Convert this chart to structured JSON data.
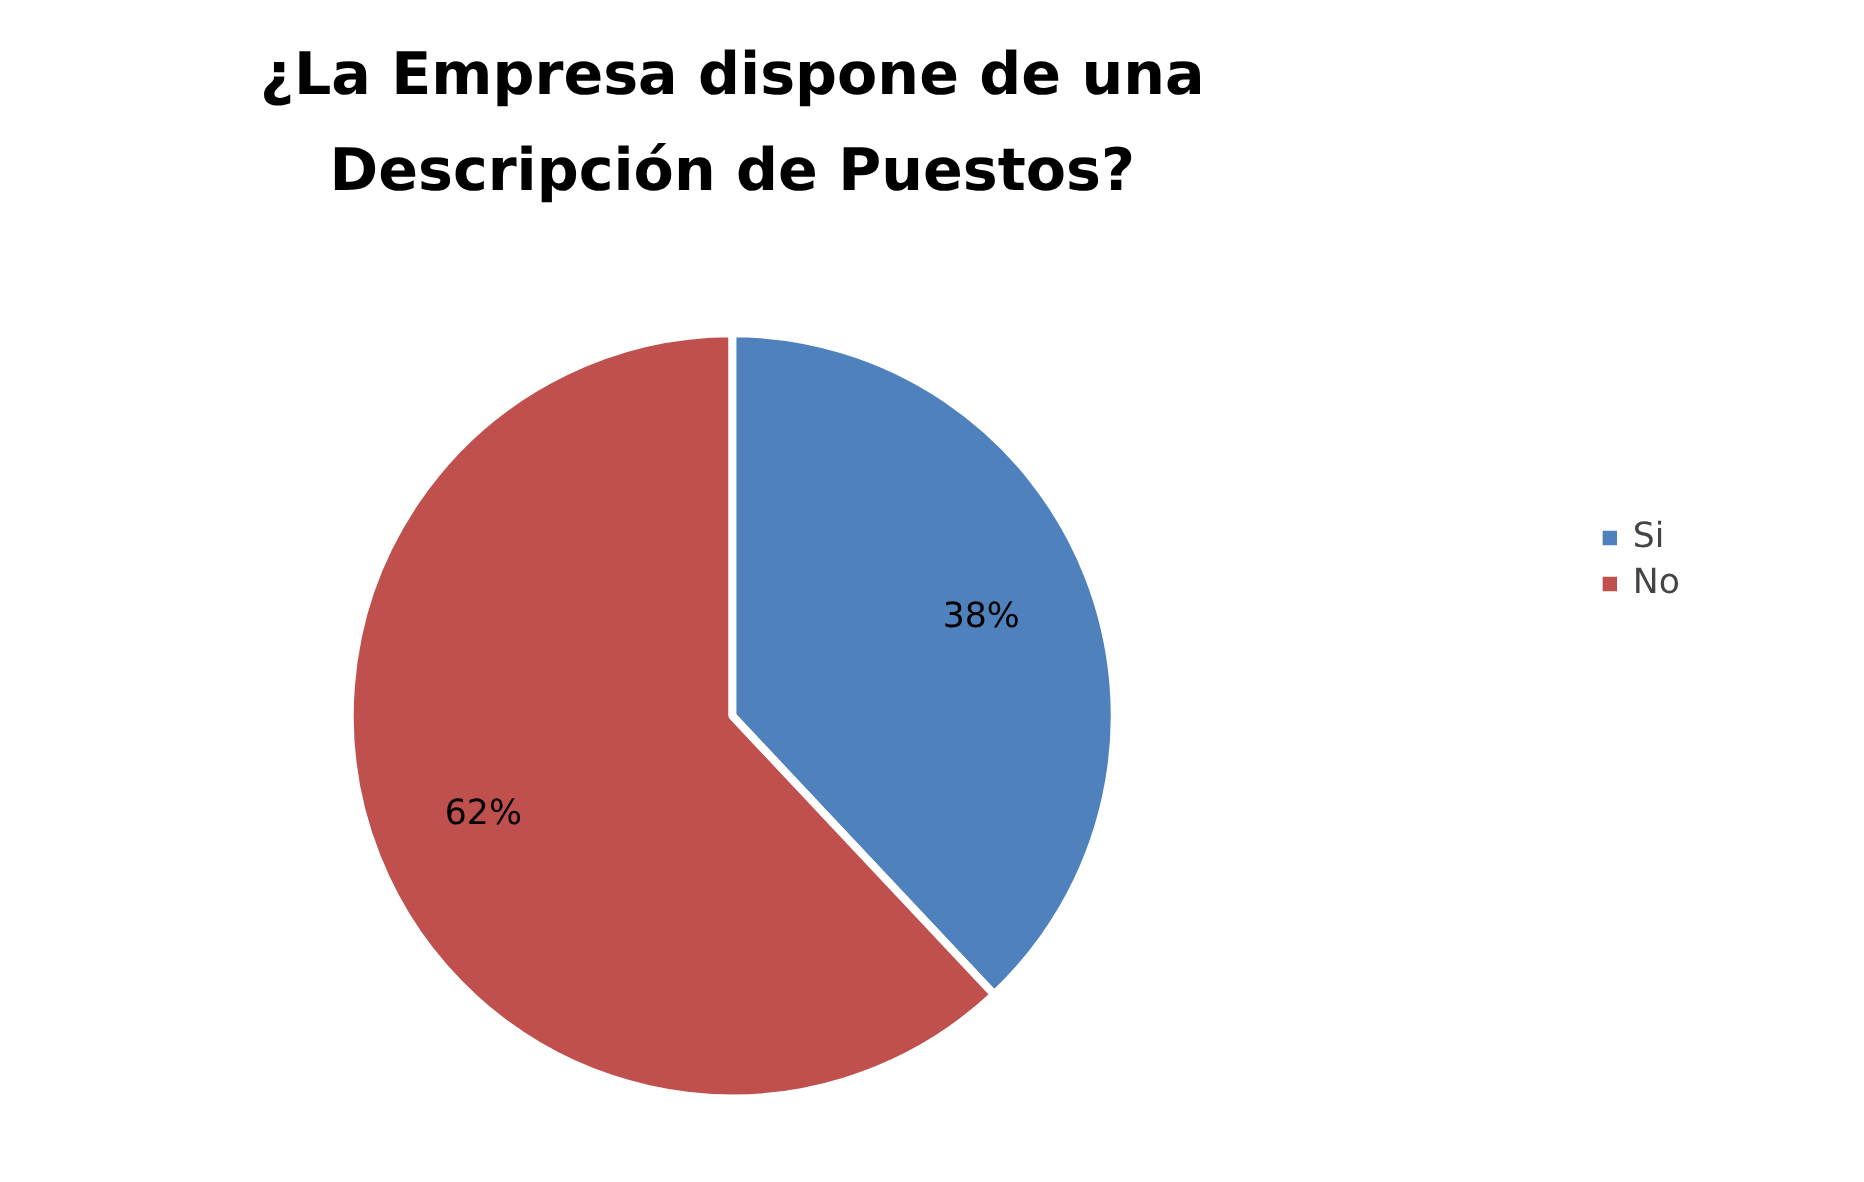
{
  "chart_data": {
    "type": "pie",
    "title": "¿La Empresa dispone de una\nDescripción de Puestos?",
    "categories": [
      "Si",
      "No"
    ],
    "values": [
      38,
      62
    ],
    "colors": [
      "#4f81bd",
      "#c0504d"
    ],
    "value_labels": [
      "38%",
      "62%"
    ],
    "legend": "right"
  }
}
